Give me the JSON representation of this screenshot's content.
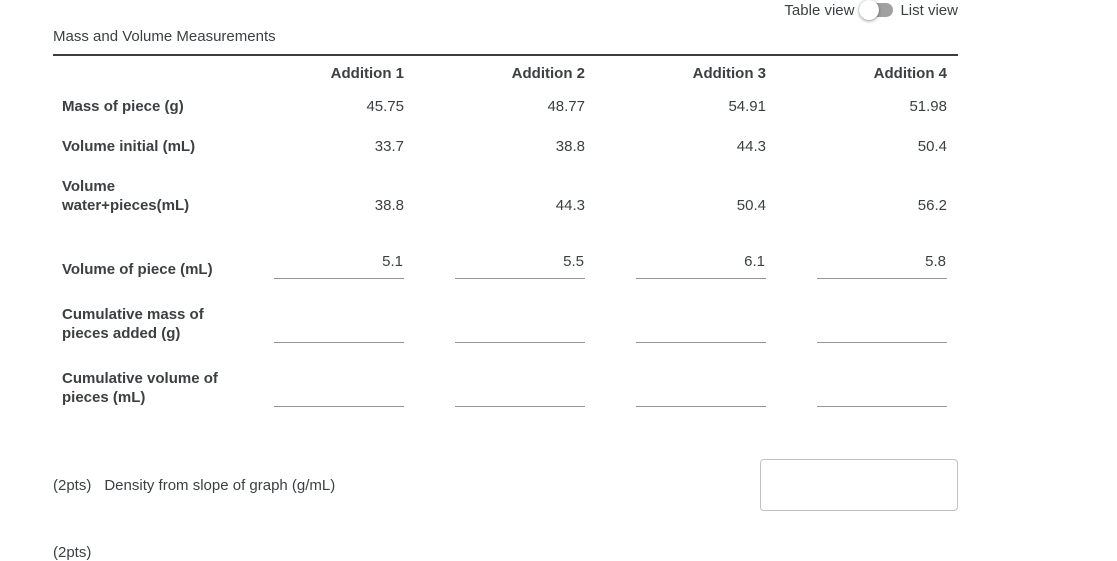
{
  "view_toggle": {
    "left_label": "Table view",
    "right_label": "List view",
    "state": "table"
  },
  "table": {
    "title": "Mass and Volume Measurements",
    "columns": [
      "Addition 1",
      "Addition 2",
      "Addition 3",
      "Addition 4"
    ],
    "rows": [
      {
        "label": "Mass of piece (g)",
        "type": "static",
        "values": [
          "45.75",
          "48.77",
          "54.91",
          "51.98"
        ]
      },
      {
        "label": "Volume initial (mL)",
        "type": "static",
        "values": [
          "33.7",
          "38.8",
          "44.3",
          "50.4"
        ]
      },
      {
        "label": "Volume water+pieces(mL)",
        "type": "static",
        "values": [
          "38.8",
          "44.3",
          "50.4",
          "56.2"
        ]
      },
      {
        "label": "Volume of piece (mL)",
        "type": "input",
        "values": [
          "5.1",
          "5.5",
          "6.1",
          "5.8"
        ]
      },
      {
        "label": "Cumulative mass of pieces added (g)",
        "type": "input",
        "values": [
          "",
          "",
          "",
          ""
        ]
      },
      {
        "label": "Cumulative volume of pieces (mL)",
        "type": "input",
        "values": [
          "",
          "",
          "",
          ""
        ]
      }
    ]
  },
  "density_question": {
    "points_label": "(2pts)",
    "text": "Density from slope of graph (g/mL)",
    "answer": ""
  },
  "next_question": {
    "points_label": "(2pts)"
  },
  "colors": {
    "text": "#3c4043",
    "title_rule": "#3d3d3d",
    "input_underline": "#949494",
    "answer_box_border": "#c1c1c1",
    "toggle_track": "#a1a1a1",
    "toggle_thumb": "#ffffff",
    "background": "#ffffff"
  }
}
